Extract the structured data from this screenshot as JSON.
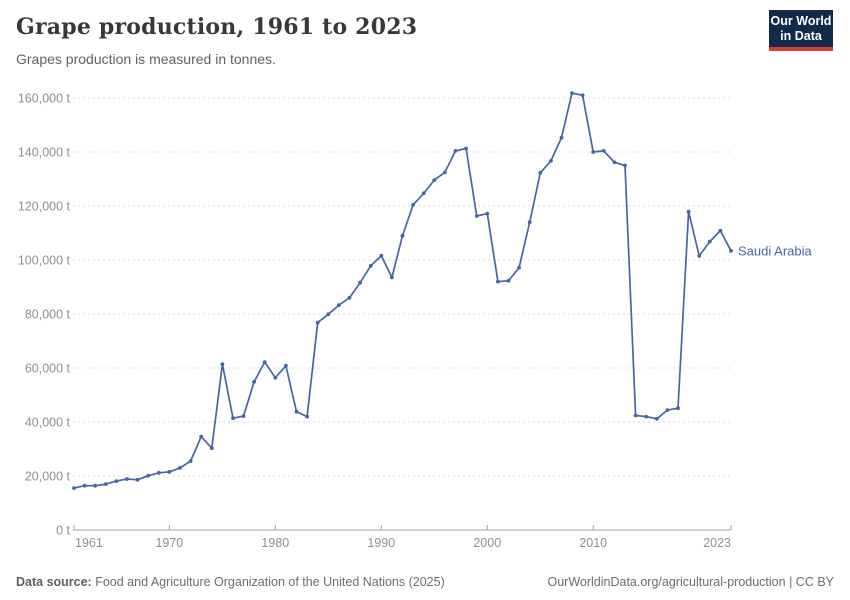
{
  "header": {
    "title": "Grape production, 1961 to 2023",
    "subtitle": "Grapes production is measured in tonnes.",
    "logo_line1": "Our World",
    "logo_line2": "in Data"
  },
  "chart_data": {
    "type": "line",
    "title": "Grape production, 1961 to 2023",
    "subtitle": "Grapes production is measured in tonnes.",
    "xlabel": "",
    "ylabel": "",
    "unit": "t",
    "xlim": [
      1961,
      2023
    ],
    "ylim": [
      0,
      165000
    ],
    "grid": "horizontal dashed",
    "legend_position": "end-of-line label",
    "x": [
      1961,
      1962,
      1963,
      1964,
      1965,
      1966,
      1967,
      1968,
      1969,
      1970,
      1971,
      1972,
      1973,
      1974,
      1975,
      1976,
      1977,
      1978,
      1979,
      1980,
      1981,
      1982,
      1983,
      1984,
      1985,
      1986,
      1987,
      1988,
      1989,
      1990,
      1991,
      1992,
      1993,
      1994,
      1995,
      1996,
      1997,
      1998,
      1999,
      2000,
      2001,
      2002,
      2003,
      2004,
      2005,
      2006,
      2007,
      2008,
      2009,
      2010,
      2011,
      2012,
      2013,
      2014,
      2015,
      2016,
      2017,
      2018,
      2019,
      2020,
      2021,
      2022,
      2023
    ],
    "series": [
      {
        "name": "Saudi Arabia",
        "color": "#4665A5",
        "values": [
          15500,
          16400,
          16400,
          17000,
          18100,
          18900,
          18600,
          20100,
          21200,
          21500,
          23000,
          25500,
          34600,
          30300,
          61400,
          41400,
          42200,
          54900,
          62200,
          56400,
          60800,
          43800,
          42000,
          76800,
          79900,
          83300,
          86000,
          91600,
          97800,
          101600,
          93500,
          109000,
          120400,
          124700,
          129600,
          132500,
          140400,
          141300,
          116300,
          117200,
          92000,
          92300,
          97200,
          114000,
          132300,
          136700,
          145300,
          161800,
          161000,
          140000,
          140400,
          136200,
          135000,
          42400,
          42000,
          41200,
          44400,
          45100,
          117900,
          101500,
          106800,
          110900,
          103400
        ]
      }
    ],
    "y_ticks": [
      {
        "value": 0,
        "label": "0 t"
      },
      {
        "value": 20000,
        "label": "20,000 t"
      },
      {
        "value": 40000,
        "label": "40,000 t"
      },
      {
        "value": 60000,
        "label": "60,000 t"
      },
      {
        "value": 80000,
        "label": "80,000 t"
      },
      {
        "value": 100000,
        "label": "100,000 t"
      },
      {
        "value": 120000,
        "label": "120,000 t"
      },
      {
        "value": 140000,
        "label": "140,000 t"
      },
      {
        "value": 160000,
        "label": "160,000 t"
      }
    ],
    "x_ticks": [
      {
        "year": 1961,
        "label": "1961",
        "align": "start"
      },
      {
        "year": 1970,
        "label": "1970",
        "align": "middle"
      },
      {
        "year": 1980,
        "label": "1980",
        "align": "middle"
      },
      {
        "year": 1990,
        "label": "1990",
        "align": "middle"
      },
      {
        "year": 2000,
        "label": "2000",
        "align": "middle"
      },
      {
        "year": 2010,
        "label": "2010",
        "align": "middle"
      },
      {
        "year": 2023,
        "label": "2023",
        "align": "end"
      }
    ]
  },
  "colors": {
    "line": "#4665A5",
    "gridline": "#dcdcdc",
    "axis": "#a3a3a3",
    "tick_label": "#8f8f8f",
    "logo_bg": "#122B4D",
    "logo_red": "#D53E2E"
  },
  "footer": {
    "source_label": "Data source:",
    "source_text": "Food and Agriculture Organization of the United Nations (2025)",
    "link": "OurWorldinData.org/agricultural-production",
    "divider": "|",
    "license": "CC BY"
  }
}
